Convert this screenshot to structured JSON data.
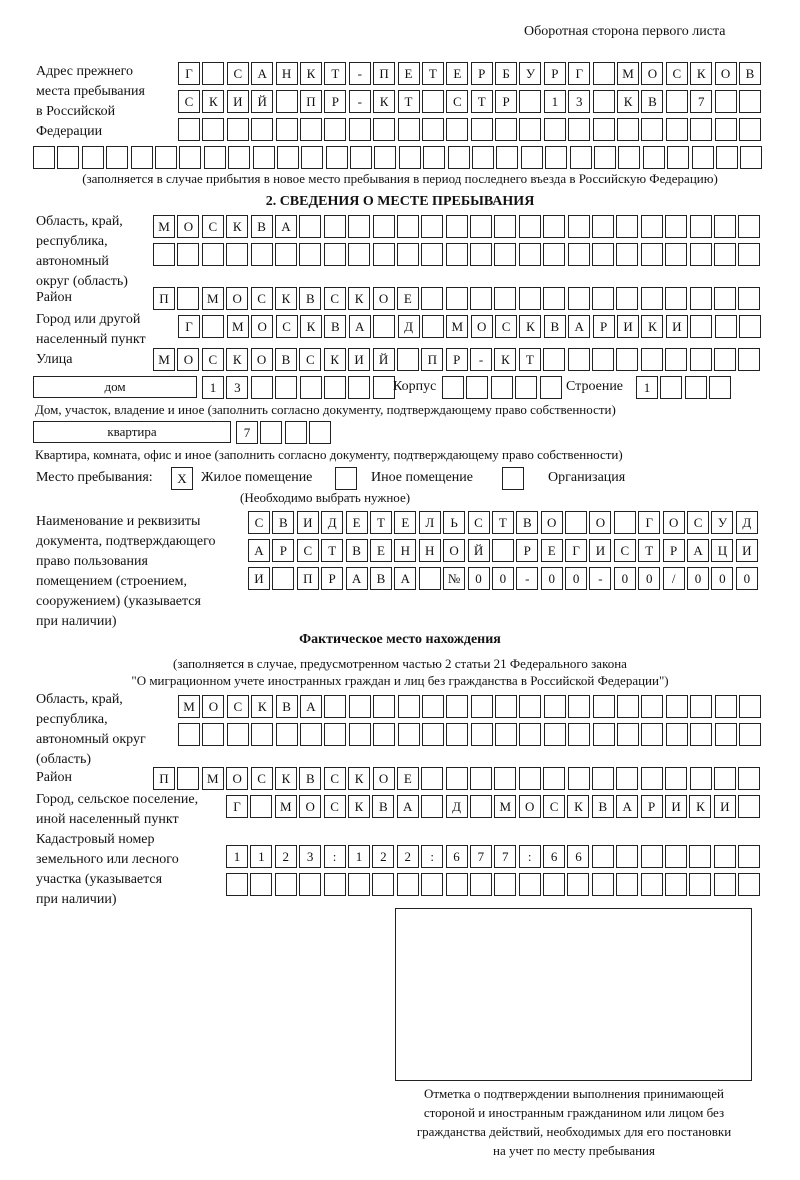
{
  "header": {
    "page_side": "Оборотная сторона первого листа"
  },
  "previous_address": {
    "label": "Адрес прежнего\nместа пребывания\nв Российской\nФедерации",
    "rows": [
      [
        "Г",
        "",
        "С",
        "А",
        "Н",
        "К",
        "Т",
        "-",
        "П",
        "Е",
        "Т",
        "Е",
        "Р",
        "Б",
        "У",
        "Р",
        "Г",
        "",
        "М",
        "О",
        "С",
        "К",
        "О",
        "В"
      ],
      [
        "С",
        "К",
        "И",
        "Й",
        "",
        "П",
        "Р",
        "-",
        "К",
        "Т",
        "",
        "С",
        "Т",
        "Р",
        "",
        "1",
        "3",
        "",
        "К",
        "В",
        "",
        "7",
        "",
        ""
      ],
      [
        "",
        "",
        "",
        "",
        "",
        "",
        "",
        "",
        "",
        "",
        "",
        "",
        "",
        "",
        "",
        "",
        "",
        "",
        "",
        "",
        "",
        "",
        "",
        ""
      ],
      [
        "",
        "",
        "",
        "",
        "",
        "",
        "",
        "",
        "",
        "",
        "",
        "",
        "",
        "",
        "",
        "",
        "",
        "",
        "",
        "",
        "",
        "",
        "",
        "",
        "",
        "",
        "",
        "",
        "",
        ""
      ]
    ],
    "note": "(заполняется в случае прибытия в новое место пребывания в период последнего въезда в Российскую Федерацию)"
  },
  "section2": {
    "title": "2. СВЕДЕНИЯ О МЕСТЕ ПРЕБЫВАНИЯ",
    "region_label": "Область, край,\nреспублика,\nавтономный\nокруг (область)",
    "region_rows": [
      [
        "М",
        "О",
        "С",
        "К",
        "В",
        "А",
        "",
        "",
        "",
        "",
        "",
        "",
        "",
        "",
        "",
        "",
        "",
        "",
        "",
        "",
        "",
        "",
        "",
        "",
        ""
      ],
      [
        "",
        "",
        "",
        "",
        "",
        "",
        "",
        "",
        "",
        "",
        "",
        "",
        "",
        "",
        "",
        "",
        "",
        "",
        "",
        "",
        "",
        "",
        "",
        "",
        ""
      ]
    ],
    "district_label": "Район",
    "district_row": [
      "П",
      "",
      "М",
      "О",
      "С",
      "К",
      "В",
      "С",
      "К",
      "О",
      "Е",
      "",
      "",
      "",
      "",
      "",
      "",
      "",
      "",
      "",
      "",
      "",
      "",
      "",
      ""
    ],
    "city_label": "Город или другой\nнаселенный пункт",
    "city_row": [
      "Г",
      "",
      "М",
      "О",
      "С",
      "К",
      "В",
      "А",
      "",
      "Д",
      "",
      "М",
      "О",
      "С",
      "К",
      "В",
      "А",
      "Р",
      "И",
      "К",
      "И",
      "",
      "",
      ""
    ],
    "street_label": "Улица",
    "street_row": [
      "М",
      "О",
      "С",
      "К",
      "О",
      "В",
      "С",
      "К",
      "И",
      "Й",
      "",
      "П",
      "Р",
      "-",
      "К",
      "Т",
      "",
      "",
      "",
      "",
      "",
      "",
      "",
      "",
      ""
    ],
    "house_type": "дом",
    "house_row": [
      "1",
      "3",
      "",
      "",
      "",
      "",
      "",
      ""
    ],
    "corpus_label": "Корпус",
    "corpus_row": [
      "",
      "",
      "",
      "",
      ""
    ],
    "building_label": "Строение",
    "building_row": [
      "1",
      "",
      "",
      ""
    ],
    "house_note": "Дом, участок, владение и иное (заполнить согласно документу, подтверждающему право собственности)",
    "apt_type": "квартира",
    "apt_row": [
      "7",
      "",
      "",
      ""
    ],
    "apt_note": "Квартира, комната, офис и иное (заполнить согласно документу, подтверждающему право собственности)",
    "place_label": "Место пребывания:",
    "place_options": [
      {
        "label": "Жилое помещение",
        "checked": true,
        "mark": "X"
      },
      {
        "label": "Иное помещение",
        "checked": false,
        "mark": ""
      },
      {
        "label": "Организация",
        "checked": false,
        "mark": ""
      }
    ],
    "place_hint": "(Необходимо выбрать нужное)",
    "doc_label": "Наименование и реквизиты\nдокумента, подтверждающего\nправо пользования\nпомещением (строением,\nсооружением) (указывается\nпри наличии)",
    "doc_rows": [
      [
        "С",
        "В",
        "И",
        "Д",
        "Е",
        "Т",
        "Е",
        "Л",
        "Ь",
        "С",
        "Т",
        "В",
        "О",
        "",
        "О",
        "",
        "Г",
        "О",
        "С",
        "У",
        "Д"
      ],
      [
        "А",
        "Р",
        "С",
        "Т",
        "В",
        "Е",
        "Н",
        "Н",
        "О",
        "Й",
        "",
        "Р",
        "Е",
        "Г",
        "И",
        "С",
        "Т",
        "Р",
        "А",
        "Ц",
        "И"
      ],
      [
        "И",
        "",
        "П",
        "Р",
        "А",
        "В",
        "А",
        "",
        "№",
        "0",
        "0",
        "-",
        "0",
        "0",
        "-",
        "0",
        "0",
        "/",
        "0",
        "0",
        "0"
      ]
    ]
  },
  "actual": {
    "title": "Фактическое место нахождения",
    "note1": "(заполняется в случае, предусмотренном частью 2 статьи 21 Федерального закона",
    "note2": "\"О миграционном учете иностранных граждан и лиц без гражданства в Российской Федерации\")",
    "region_label": "Область, край,\nреспублика,\nавтономный округ\n(область)",
    "region_rows": [
      [
        "М",
        "О",
        "С",
        "К",
        "В",
        "А",
        "",
        "",
        "",
        "",
        "",
        "",
        "",
        "",
        "",
        "",
        "",
        "",
        "",
        "",
        "",
        "",
        "",
        ""
      ],
      [
        "",
        "",
        "",
        "",
        "",
        "",
        "",
        "",
        "",
        "",
        "",
        "",
        "",
        "",
        "",
        "",
        "",
        "",
        "",
        "",
        "",
        "",
        "",
        ""
      ]
    ],
    "district_label": "Район",
    "district_row": [
      "П",
      "",
      "М",
      "О",
      "С",
      "К",
      "В",
      "С",
      "К",
      "О",
      "Е",
      "",
      "",
      "",
      "",
      "",
      "",
      "",
      "",
      "",
      "",
      "",
      "",
      "",
      ""
    ],
    "city_label": "Город, сельское поселение,\nиной населенный пункт",
    "city_row": [
      "Г",
      "",
      "М",
      "О",
      "С",
      "К",
      "В",
      "А",
      "",
      "Д",
      "",
      "М",
      "О",
      "С",
      "К",
      "В",
      "А",
      "Р",
      "И",
      "К",
      "И",
      ""
    ],
    "cadastral_label": "Кадастровый номер\nземельного или лесного\nучастка (указывается\nпри наличии)",
    "cadastral_rows": [
      [
        "1",
        "1",
        "2",
        "3",
        ":",
        "1",
        "2",
        "2",
        ":",
        "6",
        "7",
        "7",
        ":",
        "6",
        "6",
        "",
        "",
        "",
        "",
        "",
        "",
        ""
      ],
      [
        "",
        "",
        "",
        "",
        "",
        "",
        "",
        "",
        "",
        "",
        "",
        "",
        "",
        "",
        "",
        "",
        "",
        "",
        "",
        "",
        "",
        ""
      ]
    ],
    "stamp_caption": "Отметка о подтверждении выполнения принимающей\nстороной и иностранным гражданином или лицом без\nгражданства действий, необходимых для его постановки\nна учет по месту пребывания"
  }
}
